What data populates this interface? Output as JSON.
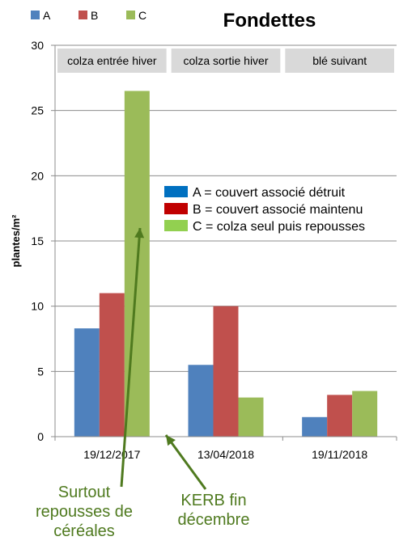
{
  "chart_data": {
    "type": "bar",
    "title": "Fondettes",
    "ylabel": "plantes/m²",
    "xlabel": "",
    "ylim": [
      0,
      30
    ],
    "yticks": [
      0,
      5,
      10,
      15,
      20,
      25,
      30
    ],
    "grid": true,
    "categories": [
      "19/12/2017",
      "13/04/2018",
      "19/11/2018"
    ],
    "series": [
      {
        "name": "A",
        "color": "#4F81BD",
        "values": [
          8.3,
          5.5,
          1.5
        ]
      },
      {
        "name": "B",
        "color": "#C0504D",
        "values": [
          11.0,
          10.0,
          3.2
        ]
      },
      {
        "name": "C",
        "color": "#9BBB59",
        "values": [
          26.5,
          3.0,
          3.5
        ]
      }
    ],
    "legend_top": {
      "placement": "top-left",
      "entries": [
        "A",
        "B",
        "C"
      ]
    },
    "legend_inner": {
      "placement": "upper-right",
      "entries": [
        {
          "label": "A = couvert associé détruit",
          "color": "#0070C0"
        },
        {
          "label": "B = couvert associé maintenu",
          "color": "#C00000"
        },
        {
          "label": "C = colza seul puis repousses",
          "color": "#92D050"
        }
      ]
    },
    "period_labels": [
      "colza entrée hiver",
      "colza sortie hiver",
      "blé suivant"
    ],
    "annotations": [
      {
        "lines": [
          "Surtout",
          "repousses de",
          "céréales"
        ],
        "color": "#4F7A1F"
      },
      {
        "lines": [
          "KERB fin",
          "décembre"
        ],
        "color": "#4F7A1F"
      }
    ]
  }
}
